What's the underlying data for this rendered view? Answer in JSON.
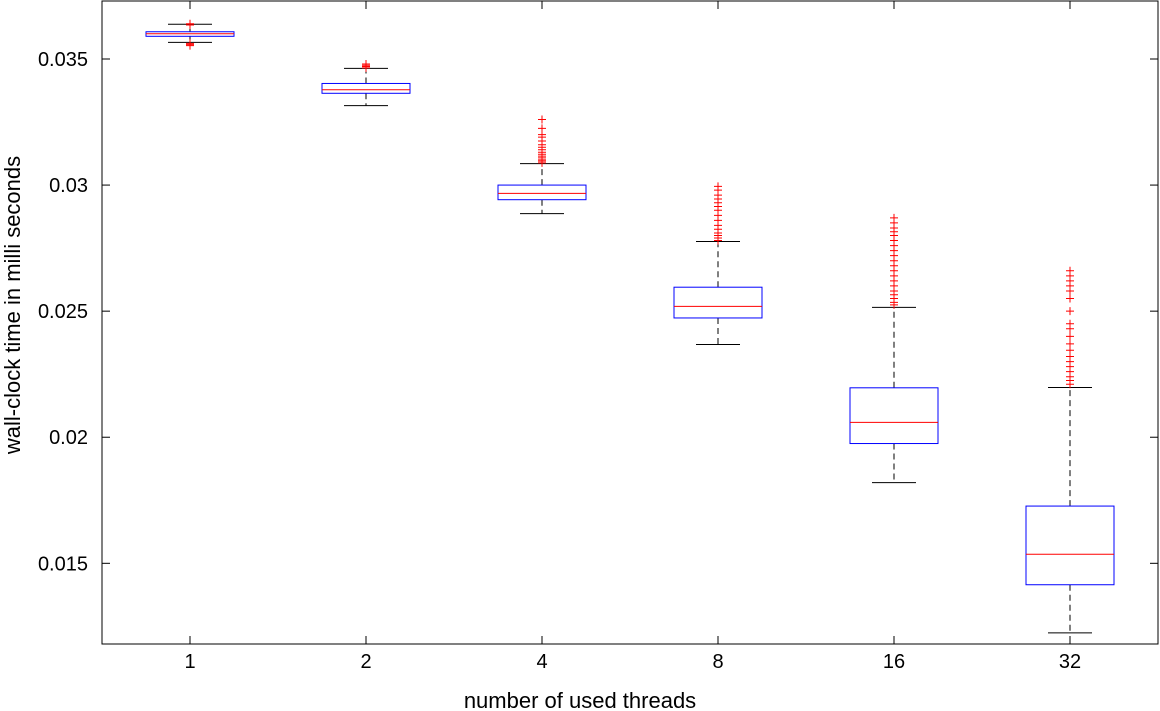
{
  "chart_data": {
    "type": "box",
    "xlabel": "number of used threads",
    "ylabel": "wall-clock time in milli seconds",
    "ylim": [
      0.0118,
      0.0373
    ],
    "yticks": [
      0.015,
      0.02,
      0.025,
      0.03,
      0.035
    ],
    "ytick_labels": [
      "0.015",
      "0.02",
      "0.025",
      "0.03",
      "0.035"
    ],
    "categories": [
      "1",
      "2",
      "4",
      "8",
      "16",
      "32"
    ],
    "colors": {
      "box": "#0000ff",
      "median": "#ff0000",
      "whisker": "#000000",
      "outlier": "#ff0000"
    },
    "boxes": [
      {
        "label": "1",
        "whisker_low": 0.03566,
        "q1": 0.0359,
        "median": 0.036,
        "q3": 0.03608,
        "whisker_high": 0.03638,
        "outliers": [
          0.03553,
          0.03557,
          0.03562,
          0.03635,
          0.0364
        ]
      },
      {
        "label": "2",
        "whisker_low": 0.03315,
        "q1": 0.03364,
        "median": 0.03378,
        "q3": 0.03403,
        "whisker_high": 0.03463,
        "outliers": [
          0.03465,
          0.0347,
          0.03475,
          0.0348
        ]
      },
      {
        "label": "4",
        "whisker_low": 0.02887,
        "q1": 0.02942,
        "median": 0.02967,
        "q3": 0.03,
        "whisker_high": 0.03085,
        "outliers": [
          0.03088,
          0.03095,
          0.031,
          0.03108,
          0.03115,
          0.03122,
          0.0313,
          0.0314,
          0.0315,
          0.0316,
          0.03175,
          0.0319,
          0.032,
          0.03225,
          0.0326
        ]
      },
      {
        "label": "8",
        "whisker_low": 0.02368,
        "q1": 0.02473,
        "median": 0.02519,
        "q3": 0.02595,
        "whisker_high": 0.02776,
        "outliers": [
          0.0278,
          0.0279,
          0.028,
          0.0281,
          0.02825,
          0.0284,
          0.0286,
          0.0288,
          0.029,
          0.02915,
          0.0293,
          0.02945,
          0.0296,
          0.0298,
          0.02995
        ]
      },
      {
        "label": "16",
        "whisker_low": 0.0182,
        "q1": 0.01975,
        "median": 0.02059,
        "q3": 0.02196,
        "whisker_high": 0.02515,
        "outliers": [
          0.02525,
          0.02535,
          0.0255,
          0.02565,
          0.0258,
          0.026,
          0.0262,
          0.0264,
          0.0266,
          0.0268,
          0.027,
          0.0272,
          0.0274,
          0.0276,
          0.0278,
          0.028,
          0.02815,
          0.0283,
          0.0285,
          0.0287
        ]
      },
      {
        "label": "32",
        "whisker_low": 0.01224,
        "q1": 0.01415,
        "median": 0.01536,
        "q3": 0.01727,
        "whisker_high": 0.02197,
        "outliers": [
          0.0221,
          0.02225,
          0.0224,
          0.0226,
          0.0228,
          0.023,
          0.0232,
          0.02345,
          0.0237,
          0.024,
          0.0243,
          0.0245,
          0.025,
          0.0255,
          0.0258,
          0.026,
          0.0262,
          0.0264,
          0.0266
        ]
      }
    ]
  }
}
